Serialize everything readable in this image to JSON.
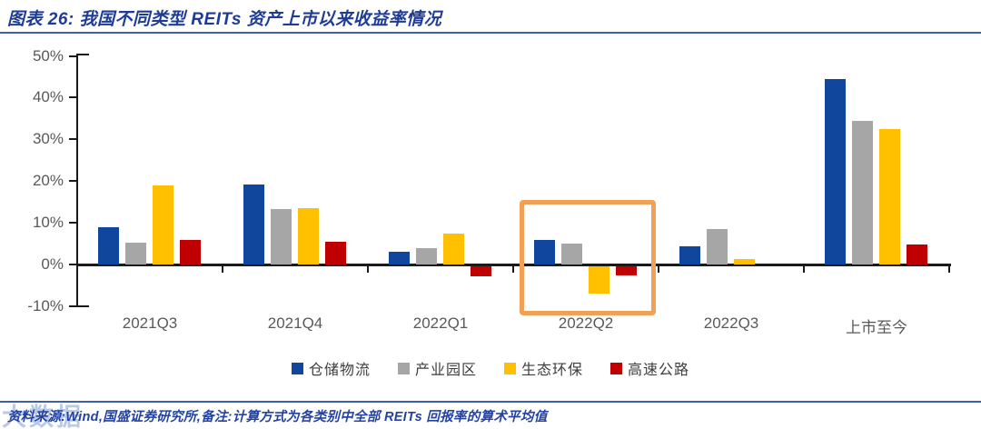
{
  "header": {
    "title": "图表 26: 我国不同类型 REITs 资产上市以来收益率情况"
  },
  "chart_data": {
    "type": "bar",
    "title": "我国不同类型 REITs 资产上市以来收益率情况",
    "categories": [
      "2021Q3",
      "2021Q4",
      "2022Q1",
      "2022Q2",
      "2022Q3",
      "上市至今"
    ],
    "series": [
      {
        "name": "仓储物流",
        "color": "#10479C",
        "values": [
          8.9,
          19.1,
          3.0,
          5.9,
          4.4,
          44.5
        ]
      },
      {
        "name": "产业园区",
        "color": "#A6A6A6",
        "values": [
          5.3,
          13.2,
          4.0,
          5.0,
          8.5,
          34.4
        ]
      },
      {
        "name": "生态环保",
        "color": "#FFC000",
        "values": [
          18.9,
          13.4,
          7.3,
          -6.6,
          1.4,
          32.4
        ]
      },
      {
        "name": "高速公路",
        "color": "#C00000",
        "values": [
          5.8,
          5.5,
          -2.4,
          -2.2,
          0,
          4.9
        ]
      }
    ],
    "xlabel": "",
    "ylabel": "",
    "ylim": [
      -10,
      50
    ],
    "yticks": [
      50,
      40,
      30,
      20,
      10,
      0,
      -10
    ],
    "ytick_suffix": "%",
    "grid": false,
    "legend_position": "bottom",
    "highlight": {
      "category": "2022Q2",
      "color": "#F0A156"
    }
  },
  "footer": {
    "source": "资料来源:Wind,国盛证券研究所,备注:计算方式为各类别中全部 REITs 回报率的算术平均值"
  },
  "watermark": "大数据"
}
